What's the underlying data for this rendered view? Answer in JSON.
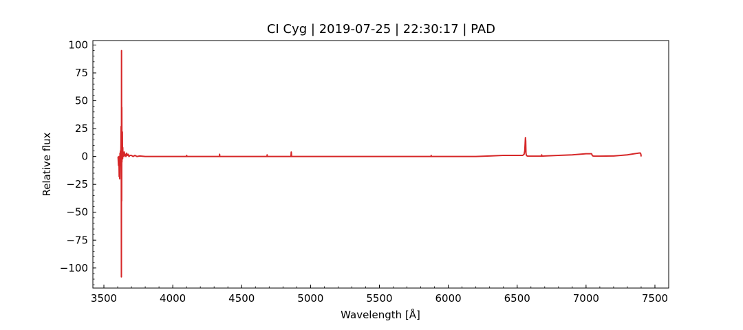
{
  "chart_data": {
    "type": "line",
    "title": "CI Cyg | 2019-07-25 | 22:30:17 | PAD",
    "xlabel": "Wavelength [Å]",
    "ylabel": "Relative flux",
    "xlim": [
      3420,
      7600
    ],
    "ylim": [
      -118,
      104
    ],
    "xticks": [
      3500,
      4000,
      4500,
      5000,
      5500,
      6000,
      6500,
      7000,
      7500
    ],
    "xtick_labels": [
      "3500",
      "4000",
      "4500",
      "5000",
      "5500",
      "6000",
      "6500",
      "7000",
      "7500"
    ],
    "xminor_step": 100,
    "yticks": [
      100,
      75,
      50,
      25,
      0,
      -25,
      -50,
      -75,
      -100
    ],
    "ytick_labels": [
      "100",
      "75",
      "50",
      "25",
      "0",
      "−25",
      "−50",
      "−75",
      "−100"
    ],
    "yminor_step": 5,
    "grid": false,
    "tick_direction": "in",
    "series": [
      {
        "color": "#d62728",
        "x": [
          3603,
          3606,
          3609,
          3611,
          3613,
          3615,
          3617,
          3619,
          3620,
          3622,
          3624,
          3625,
          3626,
          3627,
          3628,
          3629,
          3630,
          3631,
          3632,
          3633,
          3634,
          3635,
          3636,
          3637,
          3638,
          3640,
          3642,
          3644,
          3646,
          3648,
          3650,
          3653,
          3656,
          3660,
          3665,
          3670,
          3676,
          3682,
          3690,
          3700,
          3712,
          3725,
          3740,
          3760,
          3800,
          3850,
          3900,
          3970,
          4000,
          4100,
          4101,
          4102,
          4103,
          4200,
          4300,
          4339,
          4340,
          4341,
          4342,
          4400,
          4500,
          4600,
          4684,
          4685,
          4686,
          4687,
          4750,
          4800,
          4858,
          4859,
          4860,
          4861,
          4862,
          4863,
          4864,
          4900,
          5000,
          5100,
          5200,
          5300,
          5400,
          5500,
          5600,
          5700,
          5800,
          5875,
          5876,
          5877,
          5900,
          6000,
          6100,
          6200,
          6300,
          6400,
          6500,
          6540,
          6550,
          6555,
          6558,
          6560,
          6562,
          6563,
          6564,
          6566,
          6568,
          6572,
          6580,
          6600,
          6677,
          6678,
          6679,
          6700,
          6800,
          6900,
          7000,
          7040,
          7045,
          7050,
          7060,
          7100,
          7200,
          7300,
          7350,
          7380,
          7392,
          7395,
          7398,
          7400
        ],
        "y": [
          0,
          -8,
          0,
          -18,
          -6,
          -20,
          3,
          -8,
          5,
          -3,
          10,
          27,
          15,
          -108,
          95,
          -40,
          44,
          -5,
          18,
          0,
          22,
          4,
          -2,
          8,
          2,
          4,
          1,
          3,
          0,
          4,
          2,
          1,
          2,
          0,
          3,
          1,
          2,
          0,
          1,
          1,
          0,
          1,
          0,
          0.5,
          0,
          0,
          0,
          0,
          0,
          0,
          1,
          0,
          0,
          0,
          0,
          0,
          2,
          0,
          0,
          0,
          0,
          0,
          0,
          1.5,
          0.5,
          0,
          0,
          0,
          0,
          2,
          4,
          3,
          1,
          0,
          0,
          0,
          0,
          0,
          0,
          0,
          0,
          0,
          0,
          0,
          0,
          0,
          1,
          0,
          0,
          0,
          0,
          0,
          0.5,
          1,
          1,
          1,
          2,
          5,
          12,
          17,
          14,
          8,
          3,
          1.5,
          1,
          0.5,
          0.3,
          0.3,
          0.3,
          1.5,
          0.3,
          0.5,
          1,
          1.5,
          2.5,
          2.5,
          1,
          0.5,
          0.3,
          0.3,
          0.5,
          1.5,
          2.5,
          3,
          3.2,
          3,
          2,
          0
        ]
      }
    ]
  }
}
